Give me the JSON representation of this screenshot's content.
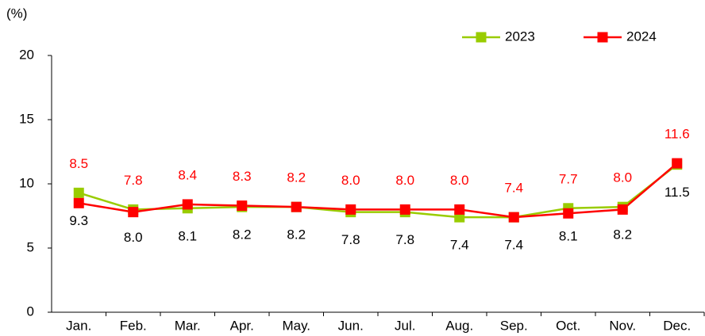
{
  "chart_data": {
    "type": "line",
    "y_axis_label": "(%)",
    "categories": [
      "Jan.",
      "Feb.",
      "Mar.",
      "Apr.",
      "May.",
      "Jun.",
      "Jul.",
      "Aug.",
      "Sep.",
      "Oct.",
      "Nov.",
      "Dec."
    ],
    "series": [
      {
        "name": "2023",
        "color": "#99cc00",
        "values": [
          9.3,
          8.0,
          8.1,
          8.2,
          8.2,
          7.8,
          7.8,
          7.4,
          7.4,
          8.1,
          8.2,
          11.5
        ],
        "value_labels": [
          "9.3",
          "8.0",
          "8.1",
          "8.2",
          "8.2",
          "7.8",
          "7.8",
          "7.4",
          "7.4",
          "8.1",
          "8.2",
          "11.5"
        ]
      },
      {
        "name": "2024",
        "color": "#ff0000",
        "values": [
          8.5,
          7.8,
          8.4,
          8.3,
          8.2,
          8.0,
          8.0,
          8.0,
          7.4,
          7.7,
          8.0,
          11.6
        ],
        "value_labels": [
          "8.5",
          "7.8",
          "8.4",
          "8.3",
          "8.2",
          "8.0",
          "8.0",
          "8.0",
          "7.4",
          "7.7",
          "8.0",
          "11.6"
        ]
      }
    ],
    "ylim": [
      0,
      20
    ],
    "yticks": [
      0,
      5,
      10,
      15,
      20
    ],
    "grid": false,
    "legend": "top-right"
  }
}
